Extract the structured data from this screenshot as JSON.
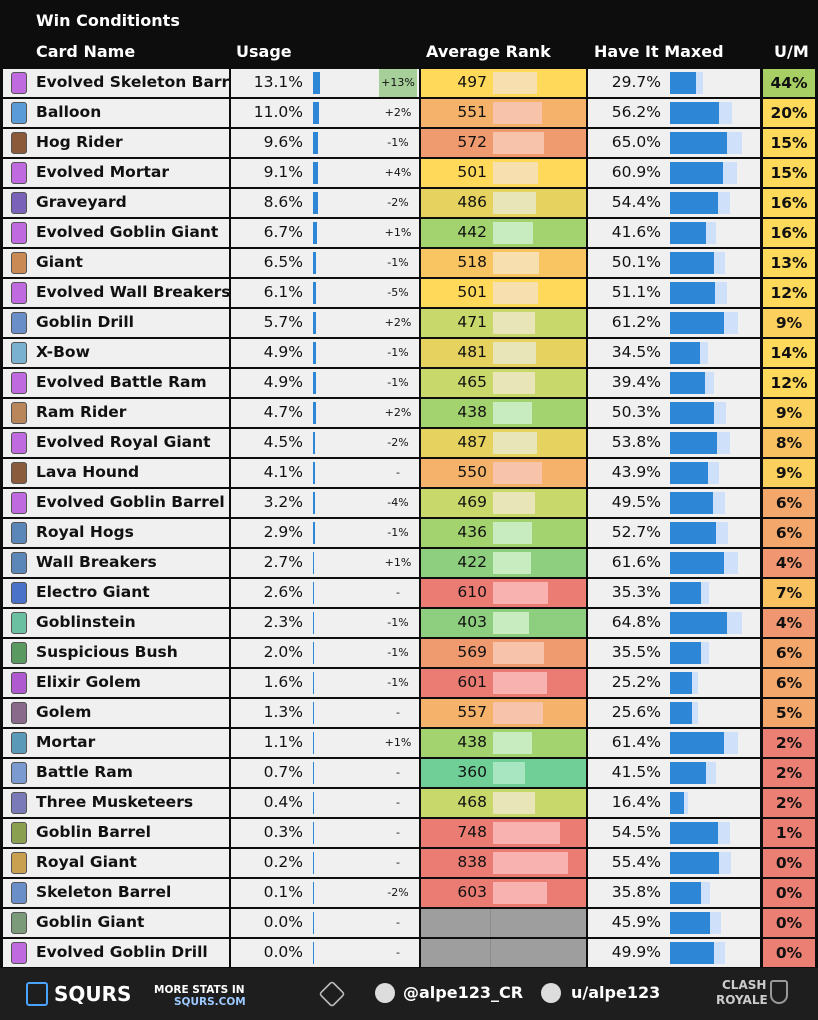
{
  "title": "Win Conditionts",
  "headers": {
    "card_name": "Card Name",
    "usage": "Usage",
    "average_rank": "Average Rank",
    "have_it_maxed": "Have It Maxed",
    "um": "U/M"
  },
  "footer": {
    "logo_text": "SQURS",
    "more_stats_line1": "MORE STATS IN",
    "more_stats_line2": "SQURS.COM",
    "twitter_handle": "@alpe123_CR",
    "reddit_handle": "u/alpe123",
    "brand_line1": "CLASH",
    "brand_line2": "ROYALE"
  },
  "colors": {
    "usage_bar": "#2e87d6",
    "maxed_bar": "#2e87d6",
    "maxed_bg": "#cfe0fa",
    "cell_bg": "#f0f0f0",
    "no_data": "#9e9e9e"
  },
  "chart_data": {
    "type": "table",
    "title": "Win Conditionts",
    "columns": [
      "Card Name",
      "Usage",
      "Usage Change",
      "Average Rank",
      "Have It Maxed",
      "U/M"
    ],
    "rows": [
      {
        "name": "Evolved Skeleton Barrel",
        "usage": "13.1%",
        "usage_value": 13.1,
        "change": "+13%",
        "rank": "497",
        "rank_value": 497,
        "maxed": "29.7%",
        "maxed_value": 29.7,
        "um": "44%",
        "um_value": 44
      },
      {
        "name": "Balloon",
        "usage": "11.0%",
        "usage_value": 11.0,
        "change": "+2%",
        "rank": "551",
        "rank_value": 551,
        "maxed": "56.2%",
        "maxed_value": 56.2,
        "um": "20%",
        "um_value": 20
      },
      {
        "name": "Hog Rider",
        "usage": "9.6%",
        "usage_value": 9.6,
        "change": "-1%",
        "rank": "572",
        "rank_value": 572,
        "maxed": "65.0%",
        "maxed_value": 65.0,
        "um": "15%",
        "um_value": 15
      },
      {
        "name": "Evolved Mortar",
        "usage": "9.1%",
        "usage_value": 9.1,
        "change": "+4%",
        "rank": "501",
        "rank_value": 501,
        "maxed": "60.9%",
        "maxed_value": 60.9,
        "um": "15%",
        "um_value": 15
      },
      {
        "name": "Graveyard",
        "usage": "8.6%",
        "usage_value": 8.6,
        "change": "-2%",
        "rank": "486",
        "rank_value": 486,
        "maxed": "54.4%",
        "maxed_value": 54.4,
        "um": "16%",
        "um_value": 16
      },
      {
        "name": "Evolved Goblin Giant",
        "usage": "6.7%",
        "usage_value": 6.7,
        "change": "+1%",
        "rank": "442",
        "rank_value": 442,
        "maxed": "41.6%",
        "maxed_value": 41.6,
        "um": "16%",
        "um_value": 16
      },
      {
        "name": "Giant",
        "usage": "6.5%",
        "usage_value": 6.5,
        "change": "-1%",
        "rank": "518",
        "rank_value": 518,
        "maxed": "50.1%",
        "maxed_value": 50.1,
        "um": "13%",
        "um_value": 13
      },
      {
        "name": "Evolved Wall Breakers",
        "usage": "6.1%",
        "usage_value": 6.1,
        "change": "-5%",
        "rank": "501",
        "rank_value": 501,
        "maxed": "51.1%",
        "maxed_value": 51.1,
        "um": "12%",
        "um_value": 12
      },
      {
        "name": "Goblin Drill",
        "usage": "5.7%",
        "usage_value": 5.7,
        "change": "+2%",
        "rank": "471",
        "rank_value": 471,
        "maxed": "61.2%",
        "maxed_value": 61.2,
        "um": "9%",
        "um_value": 9
      },
      {
        "name": "X-Bow",
        "usage": "4.9%",
        "usage_value": 4.9,
        "change": "-1%",
        "rank": "481",
        "rank_value": 481,
        "maxed": "34.5%",
        "maxed_value": 34.5,
        "um": "14%",
        "um_value": 14
      },
      {
        "name": "Evolved Battle Ram",
        "usage": "4.9%",
        "usage_value": 4.9,
        "change": "-1%",
        "rank": "465",
        "rank_value": 465,
        "maxed": "39.4%",
        "maxed_value": 39.4,
        "um": "12%",
        "um_value": 12
      },
      {
        "name": "Ram Rider",
        "usage": "4.7%",
        "usage_value": 4.7,
        "change": "+2%",
        "rank": "438",
        "rank_value": 438,
        "maxed": "50.3%",
        "maxed_value": 50.3,
        "um": "9%",
        "um_value": 9
      },
      {
        "name": "Evolved Royal Giant",
        "usage": "4.5%",
        "usage_value": 4.5,
        "change": "-2%",
        "rank": "487",
        "rank_value": 487,
        "maxed": "53.8%",
        "maxed_value": 53.8,
        "um": "8%",
        "um_value": 8
      },
      {
        "name": "Lava Hound",
        "usage": "4.1%",
        "usage_value": 4.1,
        "change": "-",
        "rank": "550",
        "rank_value": 550,
        "maxed": "43.9%",
        "maxed_value": 43.9,
        "um": "9%",
        "um_value": 9
      },
      {
        "name": "Evolved Goblin Barrel",
        "usage": "3.2%",
        "usage_value": 3.2,
        "change": "-4%",
        "rank": "469",
        "rank_value": 469,
        "maxed": "49.5%",
        "maxed_value": 49.5,
        "um": "6%",
        "um_value": 6
      },
      {
        "name": "Royal Hogs",
        "usage": "2.9%",
        "usage_value": 2.9,
        "change": "-1%",
        "rank": "436",
        "rank_value": 436,
        "maxed": "52.7%",
        "maxed_value": 52.7,
        "um": "6%",
        "um_value": 6
      },
      {
        "name": "Wall Breakers",
        "usage": "2.7%",
        "usage_value": 2.7,
        "change": "+1%",
        "rank": "422",
        "rank_value": 422,
        "maxed": "61.6%",
        "maxed_value": 61.6,
        "um": "4%",
        "um_value": 4
      },
      {
        "name": "Electro Giant",
        "usage": "2.6%",
        "usage_value": 2.6,
        "change": "-",
        "rank": "610",
        "rank_value": 610,
        "maxed": "35.3%",
        "maxed_value": 35.3,
        "um": "7%",
        "um_value": 7
      },
      {
        "name": "Goblinstein",
        "usage": "2.3%",
        "usage_value": 2.3,
        "change": "-1%",
        "rank": "403",
        "rank_value": 403,
        "maxed": "64.8%",
        "maxed_value": 64.8,
        "um": "4%",
        "um_value": 4
      },
      {
        "name": "Suspicious Bush",
        "usage": "2.0%",
        "usage_value": 2.0,
        "change": "-1%",
        "rank": "569",
        "rank_value": 569,
        "maxed": "35.5%",
        "maxed_value": 35.5,
        "um": "6%",
        "um_value": 6
      },
      {
        "name": "Elixir Golem",
        "usage": "1.6%",
        "usage_value": 1.6,
        "change": "-1%",
        "rank": "601",
        "rank_value": 601,
        "maxed": "25.2%",
        "maxed_value": 25.2,
        "um": "6%",
        "um_value": 6
      },
      {
        "name": "Golem",
        "usage": "1.3%",
        "usage_value": 1.3,
        "change": "-",
        "rank": "557",
        "rank_value": 557,
        "maxed": "25.6%",
        "maxed_value": 25.6,
        "um": "5%",
        "um_value": 5
      },
      {
        "name": "Mortar",
        "usage": "1.1%",
        "usage_value": 1.1,
        "change": "+1%",
        "rank": "438",
        "rank_value": 438,
        "maxed": "61.4%",
        "maxed_value": 61.4,
        "um": "2%",
        "um_value": 2
      },
      {
        "name": "Battle Ram",
        "usage": "0.7%",
        "usage_value": 0.7,
        "change": "-",
        "rank": "360",
        "rank_value": 360,
        "maxed": "41.5%",
        "maxed_value": 41.5,
        "um": "2%",
        "um_value": 2
      },
      {
        "name": "Three Musketeers",
        "usage": "0.4%",
        "usage_value": 0.4,
        "change": "-",
        "rank": "468",
        "rank_value": 468,
        "maxed": "16.4%",
        "maxed_value": 16.4,
        "um": "2%",
        "um_value": 2
      },
      {
        "name": "Goblin Barrel",
        "usage": "0.3%",
        "usage_value": 0.3,
        "change": "-",
        "rank": "748",
        "rank_value": 748,
        "maxed": "54.5%",
        "maxed_value": 54.5,
        "um": "1%",
        "um_value": 1
      },
      {
        "name": "Royal Giant",
        "usage": "0.2%",
        "usage_value": 0.2,
        "change": "-",
        "rank": "838",
        "rank_value": 838,
        "maxed": "55.4%",
        "maxed_value": 55.4,
        "um": "0%",
        "um_value": 0
      },
      {
        "name": "Skeleton Barrel",
        "usage": "0.1%",
        "usage_value": 0.1,
        "change": "-2%",
        "rank": "603",
        "rank_value": 603,
        "maxed": "35.8%",
        "maxed_value": 35.8,
        "um": "0%",
        "um_value": 0
      },
      {
        "name": "Goblin Giant",
        "usage": "0.0%",
        "usage_value": 0.0,
        "change": "-",
        "rank": "",
        "rank_value": null,
        "maxed": "45.9%",
        "maxed_value": 45.9,
        "um": "0%",
        "um_value": 0
      },
      {
        "name": "Evolved Goblin Drill",
        "usage": "0.0%",
        "usage_value": 0.0,
        "change": "-",
        "rank": "",
        "rank_value": null,
        "maxed": "49.9%",
        "maxed_value": 49.9,
        "um": "0%",
        "um_value": 0
      }
    ]
  }
}
